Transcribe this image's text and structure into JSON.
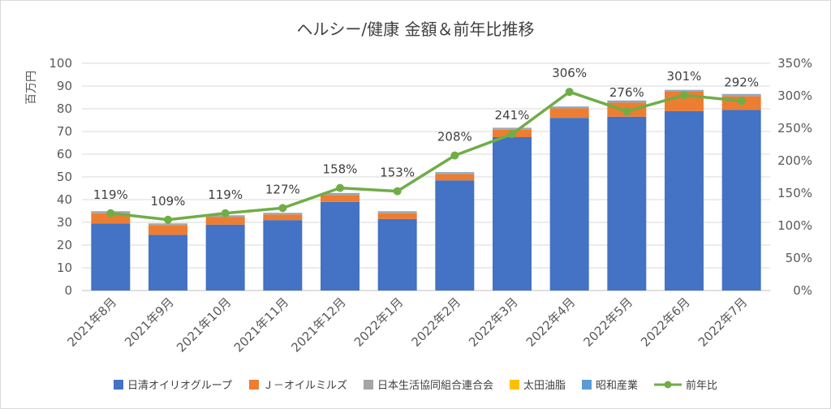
{
  "chart_data": {
    "type": "bar",
    "stacked": true,
    "title": "ヘルシー/健康 金額＆前年比推移",
    "ylabel": "百万円",
    "ylim": [
      0,
      100
    ],
    "yticks": [
      "0",
      "10",
      "20",
      "30",
      "40",
      "50",
      "60",
      "70",
      "80",
      "90",
      "100"
    ],
    "y2lim": [
      0,
      350
    ],
    "y2ticks": [
      "0%",
      "50%",
      "100%",
      "150%",
      "200%",
      "250%",
      "300%",
      "350%"
    ],
    "categories": [
      "2021年8月",
      "2021年9月",
      "2021年10月",
      "2021年11月",
      "2021年12月",
      "2022年1月",
      "2022年2月",
      "2022年3月",
      "2022年4月",
      "2022年5月",
      "2022年6月",
      "2022年7月"
    ],
    "series": [
      {
        "name": "日清オイリオグループ",
        "color": "#4472C4",
        "values": [
          29.5,
          24.5,
          29,
          31,
          39,
          31.5,
          48.5,
          67.5,
          76,
          76.5,
          79,
          79.5
        ]
      },
      {
        "name": "Ｊ－オイルミルズ",
        "color": "#ED7D31",
        "values": [
          4.5,
          4.2,
          3.3,
          2.5,
          3,
          2.5,
          2.8,
          3.3,
          4.2,
          6.2,
          8.5,
          6
        ]
      },
      {
        "name": "日本生活協同組合連合会",
        "color": "#A5A5A5",
        "values": [
          0.7,
          0.6,
          0.6,
          0.5,
          0.7,
          0.7,
          0.6,
          0.6,
          0.6,
          0.7,
          0.6,
          0.8
        ]
      },
      {
        "name": "太田油脂",
        "color": "#FFC000",
        "values": [
          0,
          0,
          0,
          0,
          0,
          0,
          0,
          0,
          0,
          0,
          0,
          0
        ]
      },
      {
        "name": "昭和産業",
        "color": "#5B9BD5",
        "values": [
          0.2,
          0.2,
          0.2,
          0.2,
          0.2,
          0.2,
          0.2,
          0.2,
          0.2,
          0.2,
          0.2,
          0.2
        ]
      }
    ],
    "line": {
      "name": "前年比",
      "color": "#70AD47",
      "axis": "right",
      "values": [
        119,
        109,
        119,
        127,
        158,
        153,
        208,
        241,
        306,
        276,
        301,
        292
      ],
      "labels": [
        "119%",
        "109%",
        "119%",
        "127%",
        "158%",
        "153%",
        "208%",
        "241%",
        "306%",
        "276%",
        "301%",
        "292%"
      ]
    },
    "legend_position": "bottom",
    "grid": true
  }
}
